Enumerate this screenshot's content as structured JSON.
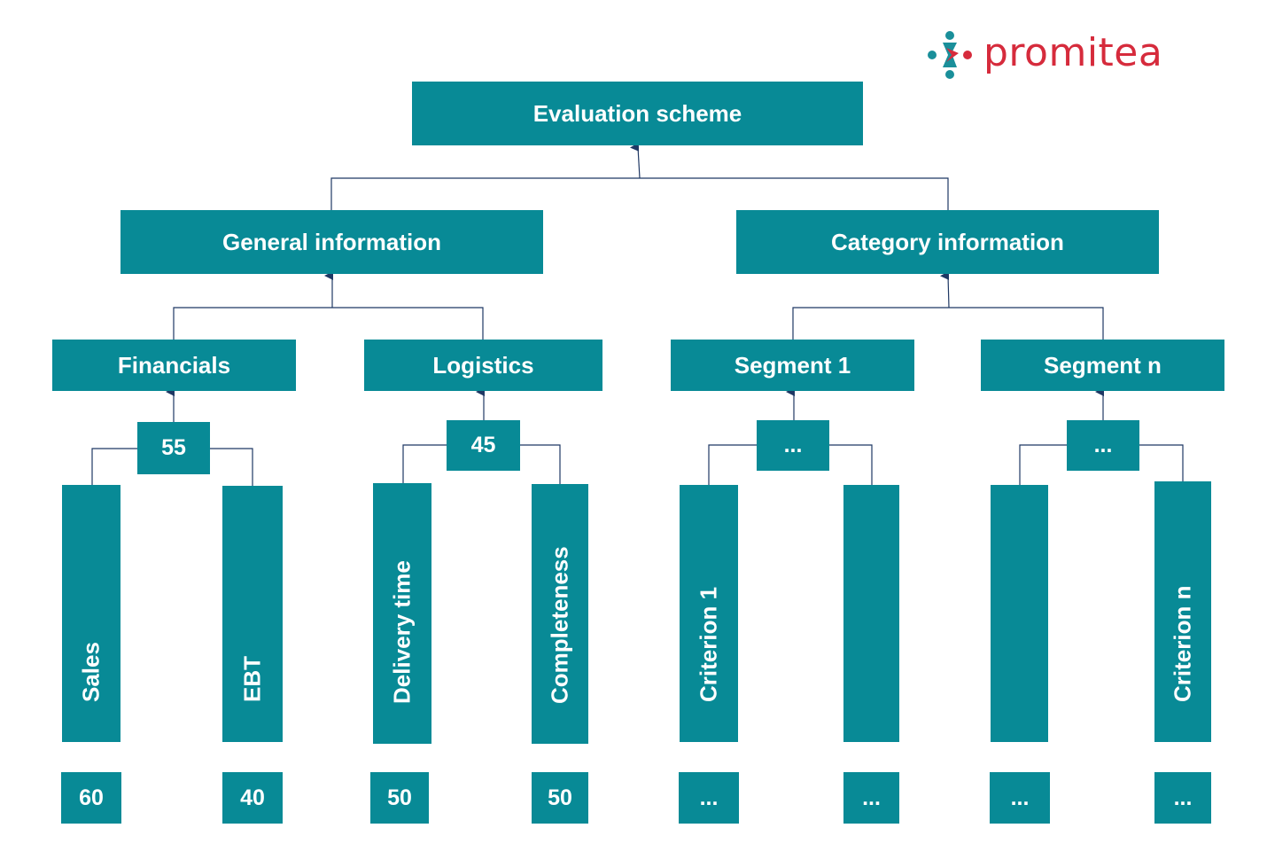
{
  "logo": {
    "text": "promitea",
    "brand_color": "#d62b3c",
    "mark_color": "#1a8f9a"
  },
  "colors": {
    "box": "#088a96",
    "text": "#ffffff",
    "connector": "#1f3864"
  },
  "root": "Evaluation scheme",
  "level1": {
    "general": "General information",
    "category": "Category information"
  },
  "groups": {
    "financials": {
      "label": "Financials",
      "weight": "55"
    },
    "logistics": {
      "label": "Logistics",
      "weight": "45"
    },
    "segment1": {
      "label": "Segment 1",
      "weight": "..."
    },
    "segmentn": {
      "label": "Segment n",
      "weight": "..."
    }
  },
  "criteria": [
    {
      "label": "Sales",
      "weight": "60"
    },
    {
      "label": "EBT",
      "weight": "40"
    },
    {
      "label": "Delivery time",
      "weight": "50"
    },
    {
      "label": "Completeness",
      "weight": "50"
    },
    {
      "label": "Criterion 1",
      "weight": "..."
    },
    {
      "label": "",
      "weight": "..."
    },
    {
      "label": "",
      "weight": "..."
    },
    {
      "label": "Criterion n",
      "weight": "..."
    }
  ]
}
